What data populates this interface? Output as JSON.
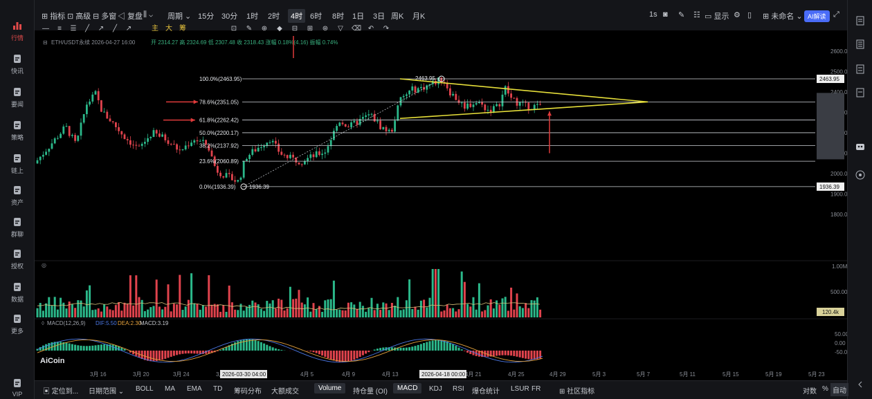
{
  "sidebar": {
    "items": [
      {
        "label": "行情",
        "icon": "bar-chart-icon",
        "active": true
      },
      {
        "label": "快讯",
        "icon": "news-flash-icon",
        "active": false
      },
      {
        "label": "要闻",
        "icon": "document-icon",
        "active": false
      },
      {
        "label": "策略",
        "icon": "robot-icon",
        "active": false
      },
      {
        "label": "链上",
        "icon": "chain-icon",
        "active": false
      },
      {
        "label": "资产",
        "icon": "wallet-icon",
        "active": false
      },
      {
        "label": "群聊",
        "icon": "chat-icon",
        "active": false
      },
      {
        "label": "授权",
        "icon": "key-icon",
        "active": false
      },
      {
        "label": "数据",
        "icon": "data-icon",
        "active": false
      },
      {
        "label": "更多",
        "icon": "grid-icon",
        "active": false
      },
      {
        "label": "VIP",
        "icon": "vip-diamond-icon",
        "active": false
      }
    ]
  },
  "toolbar": {
    "indicators_label": "指标",
    "advanced_label": "高级",
    "multi_label": "多窗",
    "replay_label": "复盘",
    "period_dropdown": "周期",
    "timeframes": [
      "15分",
      "30分",
      "1时",
      "2时",
      "4时",
      "6时",
      "8时",
      "1日",
      "3日",
      "周K",
      "月K"
    ],
    "active_timeframe": "4时",
    "refresh": "1s",
    "display_label": "显示",
    "name_label": "未命名",
    "ai_label": "AI解读",
    "draw_tools": [
      "主",
      "大",
      "筹"
    ]
  },
  "chart": {
    "symbol_info": "ETH/USDT永续 2026-04-27 16:00",
    "ohlc": "开 2314.27 高 2324.69 低 2307.48 收 2318.43 涨幅 0.18%(4.16) 振幅 0.74%",
    "fib_levels": [
      {
        "label": "100.0%(2463.95)",
        "price": 2463.95
      },
      {
        "label": "78.6%(2351.05)",
        "price": 2351.05
      },
      {
        "label": "61.8%(2262.42)",
        "price": 2262.42
      },
      {
        "label": "50.0%(2200.17)",
        "price": 2200.17
      },
      {
        "label": "38.2%(2137.92)",
        "price": 2137.92
      },
      {
        "label": "23.6%(2060.89)",
        "price": 2060.89
      },
      {
        "label": "0.0%(1936.39)",
        "price": 1936.39
      }
    ],
    "high_marker": "2463.95",
    "low_marker": "1936.39",
    "price_axis": [
      "2600.00",
      "2500.00",
      "2400.00",
      "2300.00",
      "2200.00",
      "2100.00",
      "2000.00",
      "1900.00",
      "1800.00"
    ],
    "price_tags": [
      "2463.95",
      "1936.39"
    ],
    "volume_axis": [
      "1.00M",
      "500.00k"
    ],
    "volume_tag": "120.4k",
    "macd_label": "MACD(12,26,9)",
    "macd_dif": "DIF:5.50",
    "macd_dea": "DEA:2.30",
    "macd_val": "MACD:3.19",
    "macd_axis": [
      "50.00",
      "0.00",
      "-50.00"
    ],
    "date_axis": [
      "3月 16",
      "3月 20",
      "3月 24",
      "3月 28",
      "4月 5",
      "4月 9",
      "4月 13",
      "4月 21",
      "4月 25",
      "4月 29",
      "5月 3",
      "5月 7",
      "5月 11",
      "5月 15",
      "5月 19",
      "5月 23"
    ],
    "crosshair_dates": [
      "2026-03-30 04:00",
      "2026-04-18 00:00"
    ],
    "logo": "AiCoin"
  },
  "bottom": {
    "locate_label": "定位到...",
    "range_label": "日期范围",
    "indicators": [
      "BOLL",
      "MA",
      "EMA",
      "TD",
      "筹码分布",
      "大额成交",
      "Volume",
      "持仓量 (OI)",
      "MACD",
      "KDJ",
      "RSI",
      "爆仓统计",
      "LSUR",
      "FR",
      "社区指标"
    ],
    "active": [
      "Volume",
      "MACD"
    ],
    "right": [
      "对数",
      "%",
      "自动"
    ]
  },
  "colors": {
    "up": "#2bb88a",
    "down": "#e0434d",
    "triangle": "#e6df3a",
    "arrow": "#e03b3b",
    "fib": "#cfd3d9"
  }
}
